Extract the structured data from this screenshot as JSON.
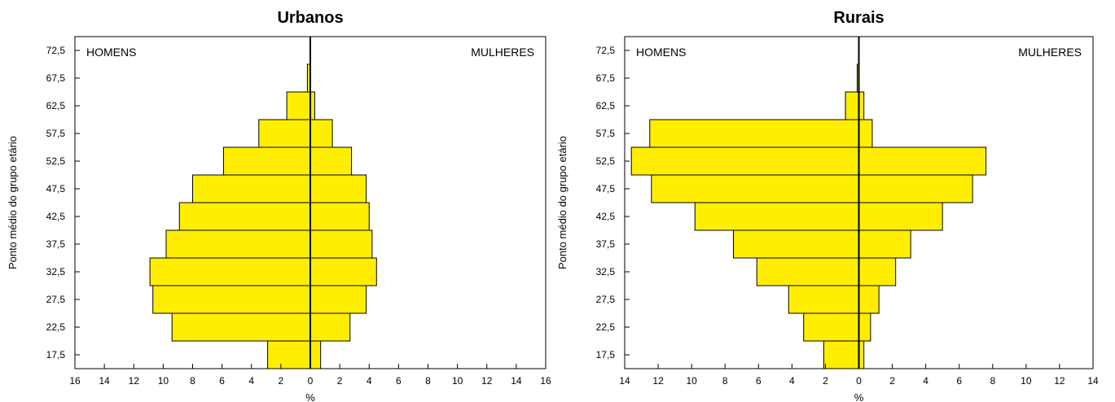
{
  "charts": [
    {
      "title": "Urbanos",
      "ylabel": "Ponto médio do grupo etário",
      "xlabel": "%",
      "left_label": "HOMENS",
      "right_label": "MULHERES"
    },
    {
      "title": "Rurais",
      "ylabel": "Ponto médio do grupo etário",
      "xlabel": "%",
      "left_label": "HOMENS",
      "right_label": "MULHERES"
    }
  ],
  "chart_data": [
    {
      "type": "bar",
      "orientation": "horizontal",
      "subtype": "population-pyramid",
      "title": "Urbanos",
      "xlabel": "%",
      "ylabel": "Ponto médio do grupo etário",
      "categories": [
        "17,5",
        "22,5",
        "27,5",
        "32,5",
        "37,5",
        "42,5",
        "47,5",
        "52,5",
        "57,5",
        "62,5",
        "67,5",
        "72,5"
      ],
      "series": [
        {
          "name": "HOMENS",
          "values": [
            2.9,
            9.4,
            10.7,
            10.9,
            9.8,
            8.9,
            8.0,
            5.9,
            3.5,
            1.6,
            0.2,
            0.0
          ]
        },
        {
          "name": "MULHERES",
          "values": [
            0.7,
            2.7,
            3.8,
            4.5,
            4.2,
            4.0,
            3.8,
            2.8,
            1.5,
            0.3,
            0.0,
            0.0
          ]
        }
      ],
      "xlim": [
        -16,
        16
      ],
      "xticks": [
        -16,
        -14,
        -12,
        -10,
        -8,
        -6,
        -4,
        -2,
        0,
        2,
        4,
        6,
        8,
        10,
        12,
        14,
        16
      ],
      "xtick_labels": [
        "16",
        "14",
        "12",
        "10",
        "8",
        "6",
        "4",
        "2",
        "0",
        "2",
        "4",
        "6",
        "8",
        "10",
        "12",
        "14",
        "16"
      ],
      "colors": {
        "bar": "#ffee00",
        "edge": "#000000"
      }
    },
    {
      "type": "bar",
      "orientation": "horizontal",
      "subtype": "population-pyramid",
      "title": "Rurais",
      "xlabel": "%",
      "ylabel": "Ponto médio do grupo etário",
      "categories": [
        "17,5",
        "22,5",
        "27,5",
        "32,5",
        "37,5",
        "42,5",
        "47,5",
        "52,5",
        "57,5",
        "62,5",
        "67,5",
        "72,5"
      ],
      "series": [
        {
          "name": "HOMENS",
          "values": [
            2.1,
            3.3,
            4.2,
            6.1,
            7.5,
            9.8,
            12.4,
            13.6,
            12.5,
            0.8,
            0.1,
            0.0
          ]
        },
        {
          "name": "MULHERES",
          "values": [
            0.3,
            0.7,
            1.2,
            2.2,
            3.1,
            5.0,
            6.8,
            7.6,
            0.8,
            0.3,
            0.0,
            0.0
          ]
        }
      ],
      "xlim": [
        -14,
        14
      ],
      "xticks": [
        -14,
        -12,
        -10,
        -8,
        -6,
        -4,
        -2,
        0,
        2,
        4,
        6,
        8,
        10,
        12,
        14
      ],
      "xtick_labels": [
        "14",
        "12",
        "10",
        "8",
        "6",
        "4",
        "2",
        "0",
        "2",
        "4",
        "6",
        "8",
        "10",
        "12",
        "14"
      ],
      "colors": {
        "bar": "#ffee00",
        "edge": "#000000"
      }
    }
  ]
}
